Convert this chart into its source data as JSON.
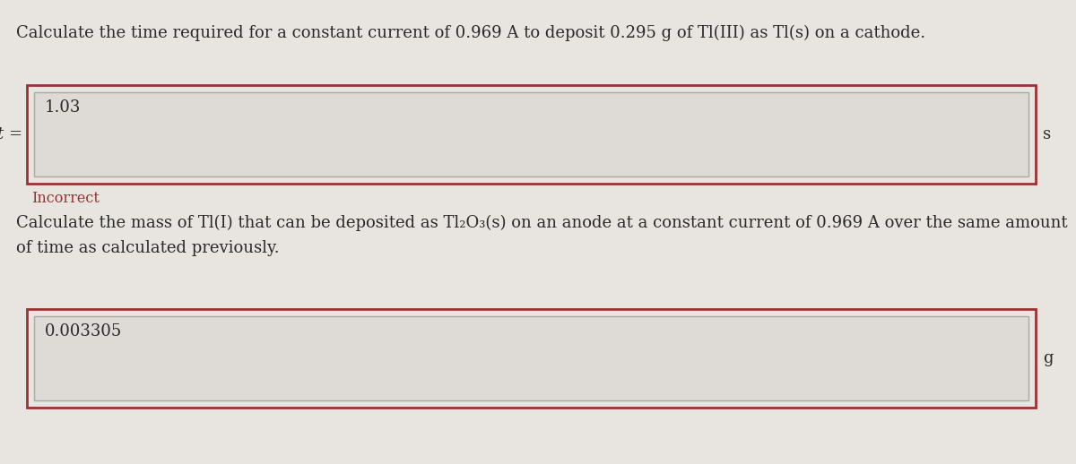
{
  "bg_color": "#e8e4df",
  "question1": "Calculate the time required for a constant current of 0.969 A to deposit 0.295 g of Tl(III) as Tl(s) on a cathode.",
  "label1": "t =",
  "unit1": "s",
  "answer1": "1.03",
  "feedback1": "Incorrect",
  "feedback1_color": "#993333",
  "question2_line1": "Calculate the mass of Tl(I) that can be deposited as Tl₂O₃(s) on an anode at a constant current of 0.969 A over the same amount",
  "question2_line2": "of time as calculated previously.",
  "answer2": "0.003305",
  "unit2": "g",
  "input_bg": "#dedad5",
  "outer_border_color": "#993333",
  "inner_border_color": "#aaaaaa",
  "text_color": "#2a2a2a",
  "font_size_question": 13.0,
  "font_size_answer": 13.0,
  "font_size_label": 13.0,
  "font_size_feedback": 11.5,
  "font_size_unit": 13.0
}
